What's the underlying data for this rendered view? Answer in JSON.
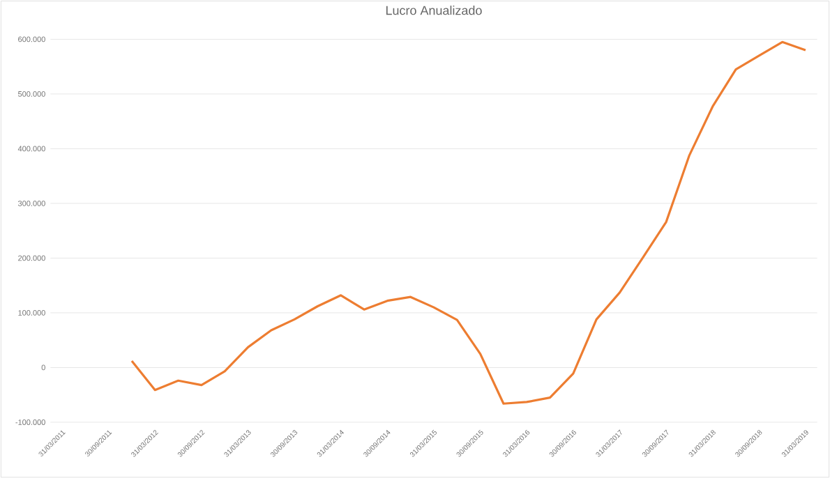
{
  "chart_data": {
    "type": "line",
    "title": "Lucro Anualizado",
    "categories": [
      "31/03/2011",
      null,
      "30/09/2011",
      null,
      "31/03/2012",
      null,
      "30/09/2012",
      null,
      "31/03/2013",
      null,
      "30/09/2013",
      null,
      "31/03/2014",
      null,
      "30/09/2014",
      null,
      "31/03/2015",
      null,
      "30/09/2015",
      null,
      "31/03/2016",
      null,
      "30/09/2016",
      null,
      "31/03/2017",
      null,
      "30/09/2017",
      null,
      "31/03/2018",
      null,
      "30/09/2018",
      null,
      "31/03/2019"
    ],
    "series": [
      {
        "color": "#ed7d31",
        "values": [
          null,
          null,
          null,
          12000,
          -41000,
          -24000,
          -32000,
          -7000,
          37000,
          68000,
          88000,
          112000,
          132000,
          106000,
          122000,
          129000,
          110000,
          87000,
          25000,
          -66000,
          -63000,
          -55000,
          -11000,
          88000,
          137000,
          201000,
          266000,
          388000,
          477000,
          545000,
          570000,
          595000,
          580000
        ]
      }
    ],
    "ylim": [
      -100000,
      600000
    ],
    "yticks": [
      {
        "value": -100000,
        "label": "-100.000"
      },
      0,
      {
        "value": 100000,
        "label": "100.000"
      },
      {
        "value": 200000,
        "label": "200.000"
      },
      {
        "value": 300000,
        "label": "300.000"
      },
      {
        "value": 400000,
        "label": "400.000"
      },
      {
        "value": 500000,
        "label": "500.000"
      },
      {
        "value": 600000,
        "label": "600.000"
      }
    ],
    "grid": "y",
    "marker": "none",
    "line_style": "solid"
  }
}
